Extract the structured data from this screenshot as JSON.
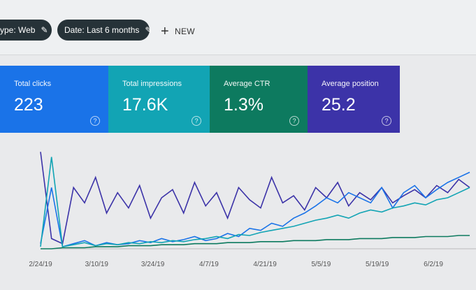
{
  "filters": {
    "type_chip": "ype: Web",
    "date_chip": "Date: Last 6 months",
    "new_label": "NEW"
  },
  "cards": [
    {
      "label": "Total clicks",
      "value": "223",
      "color": "#1a73e8"
    },
    {
      "label": "Total impressions",
      "value": "17.6K",
      "color": "#12a4b4"
    },
    {
      "label": "Average CTR",
      "value": "1.3%",
      "color": "#0d7a5f"
    },
    {
      "label": "Average position",
      "value": "25.2",
      "color": "#3c33a8"
    }
  ],
  "chart_data": {
    "type": "line",
    "x_ticks": [
      "2/24/19",
      "3/10/19",
      "3/24/19",
      "4/7/19",
      "4/21/19",
      "5/5/19",
      "5/19/19",
      "6/2/19"
    ],
    "series": [
      {
        "color": "#3c33a8",
        "values": [
          0.95,
          0.1,
          0.05,
          0.6,
          0.45,
          0.7,
          0.35,
          0.55,
          0.4,
          0.62,
          0.3,
          0.5,
          0.58,
          0.35,
          0.65,
          0.42,
          0.55,
          0.3,
          0.6,
          0.48,
          0.4,
          0.7,
          0.45,
          0.52,
          0.38,
          0.6,
          0.5,
          0.65,
          0.42,
          0.55,
          0.48,
          0.6,
          0.45,
          0.52,
          0.58,
          0.5,
          0.62,
          0.55,
          0.68,
          0.6
        ]
      },
      {
        "color": "#1a73e8",
        "values": [
          0.05,
          0.6,
          0.02,
          0.05,
          0.08,
          0.03,
          0.06,
          0.04,
          0.05,
          0.08,
          0.06,
          0.1,
          0.07,
          0.09,
          0.12,
          0.08,
          0.1,
          0.15,
          0.12,
          0.2,
          0.18,
          0.25,
          0.22,
          0.3,
          0.35,
          0.42,
          0.5,
          0.45,
          0.55,
          0.5,
          0.45,
          0.6,
          0.4,
          0.55,
          0.62,
          0.5,
          0.58,
          0.65,
          0.7,
          0.75
        ]
      },
      {
        "color": "#12a4b4",
        "values": [
          0.02,
          0.9,
          0.02,
          0.04,
          0.06,
          0.03,
          0.05,
          0.04,
          0.06,
          0.05,
          0.07,
          0.06,
          0.08,
          0.07,
          0.09,
          0.1,
          0.12,
          0.1,
          0.14,
          0.13,
          0.16,
          0.18,
          0.2,
          0.22,
          0.25,
          0.28,
          0.3,
          0.33,
          0.3,
          0.35,
          0.38,
          0.36,
          0.4,
          0.42,
          0.45,
          0.43,
          0.48,
          0.5,
          0.55,
          0.6
        ]
      },
      {
        "color": "#0d7a5f",
        "values": [
          0.0,
          0.0,
          0.01,
          0.01,
          0.01,
          0.02,
          0.02,
          0.02,
          0.03,
          0.03,
          0.03,
          0.04,
          0.04,
          0.04,
          0.05,
          0.05,
          0.05,
          0.06,
          0.06,
          0.06,
          0.07,
          0.07,
          0.07,
          0.08,
          0.08,
          0.08,
          0.09,
          0.09,
          0.09,
          0.1,
          0.1,
          0.1,
          0.11,
          0.11,
          0.11,
          0.12,
          0.12,
          0.12,
          0.13,
          0.13
        ]
      }
    ],
    "ylim": [
      0,
      1
    ],
    "grid": false
  }
}
